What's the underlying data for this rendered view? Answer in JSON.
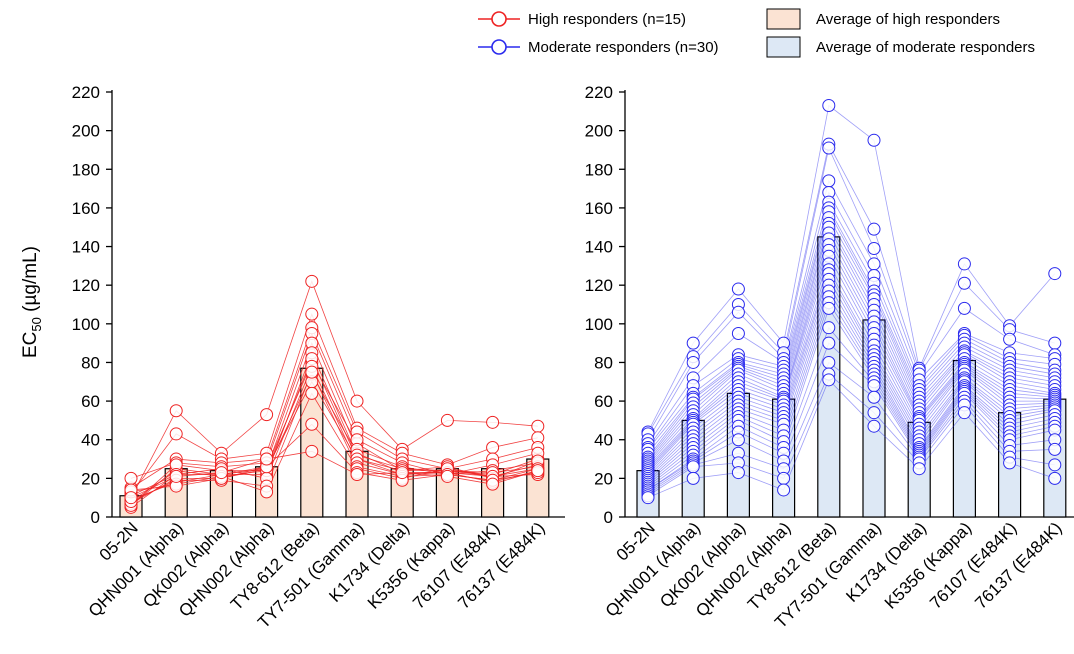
{
  "legend": {
    "high_label": "High responders (n=15)",
    "moderate_label": "Moderate responders (n=30)",
    "high_avg_label": "Average of high responders",
    "moderate_avg_label": "Average of moderate responders"
  },
  "colors": {
    "high": "#ee2222",
    "moderate": "#2a2aee",
    "high_bar": "#fbe3d3",
    "moderate_bar": "#dde8f5"
  },
  "chart_data": [
    {
      "type": "bar",
      "name": "High responders",
      "ylabel_main": "EC",
      "ylabel_sub": "50",
      "ylabel_unit": " (µg/mL)",
      "ylim": [
        0,
        220
      ],
      "yticks": [
        0,
        20,
        40,
        60,
        80,
        100,
        120,
        140,
        160,
        180,
        200,
        220
      ],
      "categories": [
        "05-2N",
        "QHN001 (Alpha)",
        "QK002 (Alpha)",
        "QHN002 (Alpha)",
        "TY8-612 (Beta)",
        "TY7-501 (Gamma)",
        "K1734 (Delta)",
        "K5356 (Kappa)",
        "76107 (E484K)",
        "76137 (E484K)"
      ],
      "averages": [
        11,
        25,
        24,
        26,
        77,
        34,
        25,
        25,
        25,
        30
      ],
      "individuals": [
        [
          6,
          25,
          22,
          26,
          80,
          38,
          24,
          24,
          22,
          30
        ],
        [
          8,
          24,
          21,
          24,
          74,
          33,
          23,
          23,
          21,
          27
        ],
        [
          5,
          22,
          22,
          25,
          70,
          30,
          22,
          24,
          21,
          25
        ],
        [
          10,
          55,
          33,
          53,
          122,
          60,
          35,
          50,
          49,
          47
        ],
        [
          12,
          43,
          30,
          33,
          105,
          46,
          33,
          27,
          36,
          41
        ],
        [
          15,
          30,
          28,
          30,
          98,
          44,
          30,
          25,
          30,
          36
        ],
        [
          20,
          28,
          26,
          28,
          95,
          40,
          28,
          22,
          27,
          33
        ],
        [
          7,
          20,
          20,
          25,
          90,
          35,
          26,
          22,
          24,
          28
        ],
        [
          9,
          18,
          22,
          22,
          85,
          32,
          25,
          24,
          23,
          26
        ],
        [
          6,
          27,
          24,
          24,
          82,
          30,
          24,
          26,
          20,
          29
        ],
        [
          11,
          22,
          25,
          20,
          78,
          28,
          22,
          23,
          18,
          24
        ],
        [
          8,
          19,
          19,
          16,
          75,
          26,
          21,
          22,
          19,
          25
        ],
        [
          13,
          17,
          21,
          13,
          64,
          25,
          20,
          25,
          21,
          22
        ],
        [
          14,
          16,
          20,
          26,
          48,
          23,
          19,
          22,
          19,
          23
        ],
        [
          10,
          21,
          23,
          30,
          34,
          22,
          23,
          21,
          17,
          24
        ]
      ]
    },
    {
      "type": "bar",
      "name": "Moderate responders",
      "ylim": [
        0,
        220
      ],
      "yticks": [
        0,
        20,
        40,
        60,
        80,
        100,
        120,
        140,
        160,
        180,
        200,
        220
      ],
      "categories": [
        "05-2N",
        "QHN001 (Alpha)",
        "QK002 (Alpha)",
        "QHN002 (Alpha)",
        "TY8-612 (Beta)",
        "TY7-501 (Gamma)",
        "K1734 (Delta)",
        "K5356 (Kappa)",
        "76107 (E484K)",
        "76137 (E484K)"
      ],
      "averages": [
        24,
        50,
        64,
        61,
        145,
        102,
        49,
        81,
        54,
        61
      ],
      "individuals": [
        [
          44,
          90,
          118,
          90,
          213,
          195,
          77,
          131,
          99,
          126
        ],
        [
          43,
          83,
          110,
          85,
          193,
          149,
          76,
          121,
          97,
          90
        ],
        [
          40,
          80,
          106,
          82,
          191,
          139,
          74,
          108,
          92,
          84
        ],
        [
          38,
          72,
          95,
          80,
          174,
          131,
          71,
          95,
          85,
          82
        ],
        [
          36,
          68,
          84,
          78,
          168,
          125,
          68,
          94,
          82,
          79
        ],
        [
          35,
          64,
          82,
          76,
          163,
          121,
          66,
          92,
          80,
          76
        ],
        [
          33,
          62,
          80,
          74,
          160,
          117,
          64,
          90,
          78,
          74
        ],
        [
          31,
          61,
          79,
          72,
          158,
          115,
          62,
          88,
          76,
          72
        ],
        [
          30,
          59,
          78,
          70,
          155,
          113,
          60,
          86,
          74,
          70
        ],
        [
          29,
          57,
          77,
          68,
          152,
          110,
          58,
          85,
          72,
          68
        ],
        [
          28,
          55,
          76,
          66,
          150,
          107,
          56,
          84,
          70,
          66
        ],
        [
          27,
          53,
          74,
          64,
          147,
          104,
          54,
          82,
          68,
          64
        ],
        [
          26,
          51,
          72,
          62,
          144,
          101,
          52,
          80,
          66,
          63
        ],
        [
          25,
          50,
          70,
          61,
          141,
          98,
          51,
          79,
          64,
          62
        ],
        [
          24,
          49,
          68,
          60,
          138,
          95,
          50,
          78,
          62,
          61
        ],
        [
          23,
          48,
          66,
          58,
          135,
          92,
          48,
          77,
          60,
          60
        ],
        [
          22,
          46,
          64,
          56,
          131,
          89,
          46,
          76,
          58,
          59
        ],
        [
          21,
          44,
          62,
          54,
          128,
          86,
          44,
          74,
          56,
          58
        ],
        [
          20,
          42,
          60,
          52,
          126,
          84,
          42,
          72,
          54,
          57
        ],
        [
          19,
          40,
          58,
          50,
          123,
          82,
          40,
          71,
          52,
          56
        ],
        [
          18,
          38,
          56,
          48,
          120,
          80,
          38,
          70,
          50,
          55
        ],
        [
          17,
          36,
          54,
          45,
          117,
          78,
          36,
          68,
          48,
          53
        ],
        [
          16,
          34,
          52,
          42,
          114,
          76,
          35,
          67,
          46,
          51
        ],
        [
          15,
          32,
          50,
          39,
          111,
          74,
          34,
          66,
          44,
          49
        ],
        [
          14,
          30,
          47,
          36,
          108,
          72,
          33,
          65,
          42,
          47
        ],
        [
          14,
          29,
          44,
          33,
          98,
          70,
          32,
          64,
          40,
          45
        ],
        [
          13,
          28,
          40,
          29,
          90,
          68,
          31,
          62,
          37,
          40
        ],
        [
          12,
          27,
          33,
          25,
          80,
          62,
          30,
          60,
          34,
          35
        ],
        [
          11,
          26,
          28,
          20,
          74,
          54,
          28,
          58,
          31,
          27
        ],
        [
          10,
          20,
          23,
          14,
          71,
          47,
          25,
          54,
          28,
          20
        ]
      ]
    }
  ]
}
